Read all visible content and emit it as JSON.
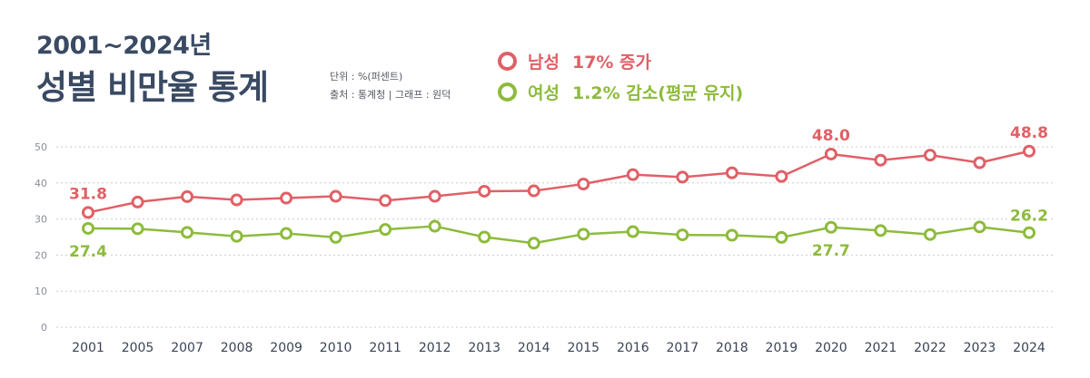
{
  "header": {
    "year_range": "2001~2024년",
    "title": "성별 비만율 통계",
    "unit": "단위 : %(퍼센트)",
    "source": "출처 : 통계청  |  그래프 : 원덕"
  },
  "legend": {
    "male": {
      "name": "남성",
      "note": "17% 증가"
    },
    "female": {
      "name": "여성",
      "note": "1.2% 감소(평균 유지)"
    }
  },
  "colors": {
    "male": "#e06067",
    "female": "#8dbb3c",
    "grid": "#c9ccd1",
    "axis_text": "#8a8f98",
    "xtick_text": "#3a4356"
  },
  "chart_data": {
    "type": "line",
    "title": "",
    "xlabel": "",
    "ylabel": "",
    "ylim": [
      0,
      50
    ],
    "yticks": [
      0,
      10,
      20,
      30,
      40,
      50
    ],
    "grid": true,
    "categories": [
      "2001",
      "2005",
      "2007",
      "2008",
      "2009",
      "2010",
      "2011",
      "2012",
      "2013",
      "2014",
      "2015",
      "2016",
      "2017",
      "2018",
      "2019",
      "2020",
      "2021",
      "2022",
      "2023",
      "2024"
    ],
    "series": [
      {
        "name": "남성",
        "values": [
          31.8,
          34.7,
          36.2,
          35.3,
          35.8,
          36.3,
          35.1,
          36.3,
          37.7,
          37.8,
          39.7,
          42.3,
          41.6,
          42.8,
          41.8,
          48.0,
          46.3,
          47.7,
          45.6,
          48.8
        ]
      },
      {
        "name": "여성",
        "values": [
          27.4,
          27.3,
          26.3,
          25.2,
          26.0,
          24.9,
          27.1,
          28.0,
          25.0,
          23.3,
          25.8,
          26.5,
          25.6,
          25.5,
          24.9,
          27.7,
          26.8,
          25.7,
          27.8,
          26.2
        ]
      }
    ],
    "annotations": [
      {
        "series": 0,
        "index": 0,
        "text": "31.8"
      },
      {
        "series": 0,
        "index": 15,
        "text": "48.0"
      },
      {
        "series": 0,
        "index": 19,
        "text": "48.8"
      },
      {
        "series": 1,
        "index": 0,
        "text": "27.4"
      },
      {
        "series": 1,
        "index": 15,
        "text": "27.7"
      },
      {
        "series": 1,
        "index": 19,
        "text": "26.2"
      }
    ]
  }
}
